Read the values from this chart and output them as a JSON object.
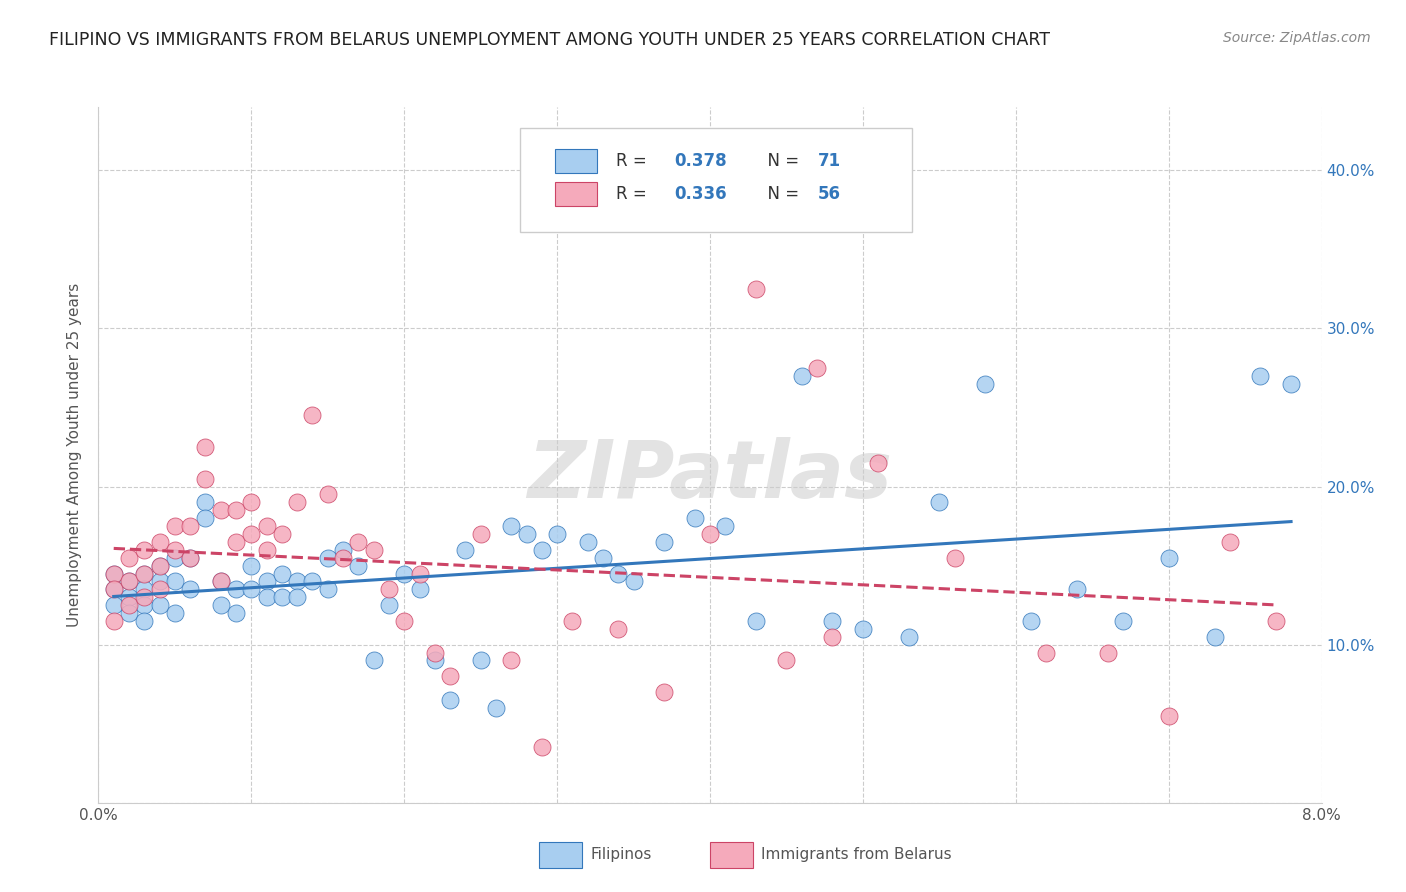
{
  "title": "FILIPINO VS IMMIGRANTS FROM BELARUS UNEMPLOYMENT AMONG YOUTH UNDER 25 YEARS CORRELATION CHART",
  "source": "Source: ZipAtlas.com",
  "ylabel": "Unemployment Among Youth under 25 years",
  "xlim": [
    0.0,
    0.08
  ],
  "ylim": [
    0.0,
    0.44
  ],
  "xticks": [
    0.0,
    0.01,
    0.02,
    0.03,
    0.04,
    0.05,
    0.06,
    0.07,
    0.08
  ],
  "xticklabels_ends": [
    "0.0%",
    "8.0%"
  ],
  "yticks": [
    0.0,
    0.1,
    0.2,
    0.3,
    0.4
  ],
  "yticklabels": [
    "",
    "10.0%",
    "20.0%",
    "30.0%",
    "40.0%"
  ],
  "filipino_color": "#A8CEF0",
  "belarus_color": "#F5AABB",
  "trend_filipino_color": "#3377BB",
  "trend_belarus_color": "#CC4466",
  "watermark": "ZIPatlas",
  "filipinos_x": [
    0.001,
    0.001,
    0.001,
    0.002,
    0.002,
    0.002,
    0.003,
    0.003,
    0.003,
    0.003,
    0.004,
    0.004,
    0.004,
    0.005,
    0.005,
    0.005,
    0.006,
    0.006,
    0.007,
    0.007,
    0.008,
    0.008,
    0.009,
    0.009,
    0.01,
    0.01,
    0.011,
    0.011,
    0.012,
    0.012,
    0.013,
    0.013,
    0.014,
    0.015,
    0.015,
    0.016,
    0.017,
    0.018,
    0.019,
    0.02,
    0.021,
    0.022,
    0.023,
    0.024,
    0.025,
    0.026,
    0.027,
    0.028,
    0.029,
    0.03,
    0.032,
    0.033,
    0.034,
    0.035,
    0.037,
    0.039,
    0.041,
    0.043,
    0.046,
    0.048,
    0.05,
    0.053,
    0.055,
    0.058,
    0.061,
    0.064,
    0.067,
    0.07,
    0.073,
    0.076,
    0.078
  ],
  "filipinos_y": [
    0.145,
    0.135,
    0.125,
    0.14,
    0.13,
    0.12,
    0.145,
    0.135,
    0.125,
    0.115,
    0.15,
    0.14,
    0.125,
    0.155,
    0.14,
    0.12,
    0.155,
    0.135,
    0.19,
    0.18,
    0.14,
    0.125,
    0.135,
    0.12,
    0.15,
    0.135,
    0.14,
    0.13,
    0.145,
    0.13,
    0.14,
    0.13,
    0.14,
    0.155,
    0.135,
    0.16,
    0.15,
    0.09,
    0.125,
    0.145,
    0.135,
    0.09,
    0.065,
    0.16,
    0.09,
    0.06,
    0.175,
    0.17,
    0.16,
    0.17,
    0.165,
    0.155,
    0.145,
    0.14,
    0.165,
    0.18,
    0.175,
    0.115,
    0.27,
    0.115,
    0.11,
    0.105,
    0.19,
    0.265,
    0.115,
    0.135,
    0.115,
    0.155,
    0.105,
    0.27,
    0.265
  ],
  "belarus_x": [
    0.001,
    0.001,
    0.001,
    0.002,
    0.002,
    0.002,
    0.003,
    0.003,
    0.003,
    0.004,
    0.004,
    0.004,
    0.005,
    0.005,
    0.006,
    0.006,
    0.007,
    0.007,
    0.008,
    0.008,
    0.009,
    0.009,
    0.01,
    0.01,
    0.011,
    0.011,
    0.012,
    0.013,
    0.014,
    0.015,
    0.016,
    0.017,
    0.018,
    0.019,
    0.02,
    0.021,
    0.022,
    0.023,
    0.025,
    0.027,
    0.029,
    0.031,
    0.034,
    0.037,
    0.04,
    0.043,
    0.047,
    0.051,
    0.056,
    0.062,
    0.066,
    0.07,
    0.074,
    0.077,
    0.045,
    0.048
  ],
  "belarus_y": [
    0.145,
    0.135,
    0.115,
    0.155,
    0.14,
    0.125,
    0.16,
    0.145,
    0.13,
    0.165,
    0.15,
    0.135,
    0.175,
    0.16,
    0.175,
    0.155,
    0.225,
    0.205,
    0.185,
    0.14,
    0.185,
    0.165,
    0.19,
    0.17,
    0.175,
    0.16,
    0.17,
    0.19,
    0.245,
    0.195,
    0.155,
    0.165,
    0.16,
    0.135,
    0.115,
    0.145,
    0.095,
    0.08,
    0.17,
    0.09,
    0.035,
    0.115,
    0.11,
    0.07,
    0.17,
    0.325,
    0.275,
    0.215,
    0.155,
    0.095,
    0.095,
    0.055,
    0.165,
    0.115,
    0.09,
    0.105
  ]
}
